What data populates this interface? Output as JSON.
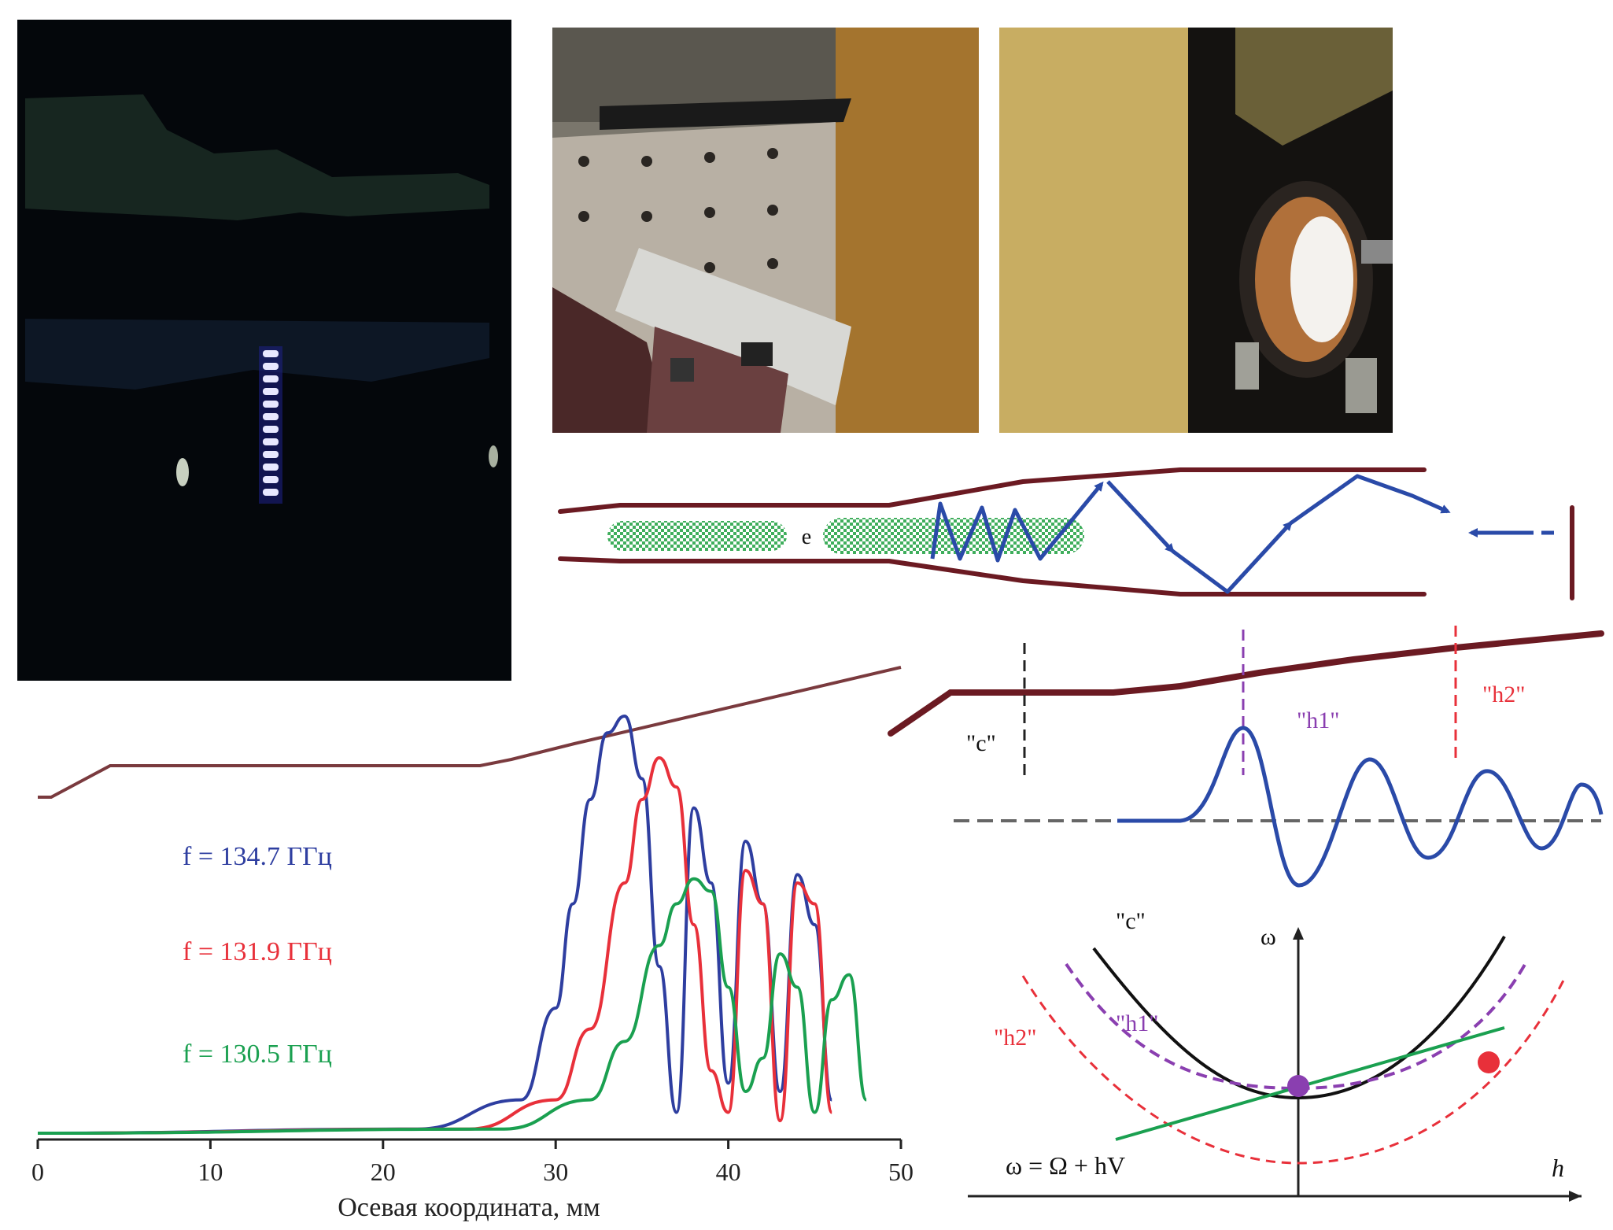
{
  "colors": {
    "waveguide": "#6b1a22",
    "wave": "#2a4aa8",
    "beam": "#3fae5c",
    "c_mode": "#111111",
    "h1_mode": "#8a3fb0",
    "h2_mode": "#e8303a",
    "graph_f1": "#2e3ea0",
    "graph_f2": "#e8303a",
    "graph_f3": "#1aa050",
    "profile": "#7a3a3e"
  },
  "schematic": {
    "beam_label": "e"
  },
  "mode_diagram": {
    "label_c": "\"c\"",
    "label_h1": "\"h1\"",
    "label_h2": "\"h2\""
  },
  "dispersion": {
    "label_c": "\"c\"",
    "label_h1": "\"h1\"",
    "label_h2": "\"h2\"",
    "y_axis": "ω",
    "x_axis": "h",
    "equation": "ω = Ω + hV"
  },
  "chart_data": {
    "type": "line",
    "xlabel": "Осевая координата, мм",
    "ylabel": "",
    "xlim": [
      0,
      50
    ],
    "ylim": [
      0,
      1
    ],
    "xticks": [
      "0",
      "10",
      "20",
      "30",
      "40",
      "50"
    ],
    "grid": false,
    "legend_position": "left",
    "series": [
      {
        "name": "f = 134.7 ГГц",
        "x": [
          0,
          22,
          28,
          30,
          31,
          32,
          33,
          34,
          35,
          36,
          37,
          38,
          39,
          40,
          41,
          42,
          43,
          44,
          45,
          46
        ],
        "y": [
          0,
          0.01,
          0.08,
          0.3,
          0.55,
          0.8,
          0.96,
          1.0,
          0.85,
          0.4,
          0.05,
          0.78,
          0.6,
          0.12,
          0.7,
          0.55,
          0.1,
          0.62,
          0.5,
          0.08
        ]
      },
      {
        "name": "f = 131.9 ГГц",
        "x": [
          0,
          25,
          30,
          32,
          34,
          35,
          36,
          37,
          38,
          39,
          40,
          41,
          42,
          43,
          44,
          45,
          46
        ],
        "y": [
          0,
          0.01,
          0.08,
          0.25,
          0.6,
          0.8,
          0.9,
          0.83,
          0.5,
          0.15,
          0.05,
          0.63,
          0.55,
          0.03,
          0.6,
          0.55,
          0.05
        ]
      },
      {
        "name": "f = 130.5 ГГц",
        "x": [
          0,
          27,
          32,
          34,
          36,
          37,
          38,
          39,
          40,
          41,
          42,
          43,
          44,
          45,
          46,
          47,
          48
        ],
        "y": [
          0,
          0.01,
          0.08,
          0.22,
          0.45,
          0.55,
          0.61,
          0.58,
          0.35,
          0.1,
          0.18,
          0.43,
          0.35,
          0.05,
          0.32,
          0.38,
          0.08
        ]
      }
    ]
  }
}
